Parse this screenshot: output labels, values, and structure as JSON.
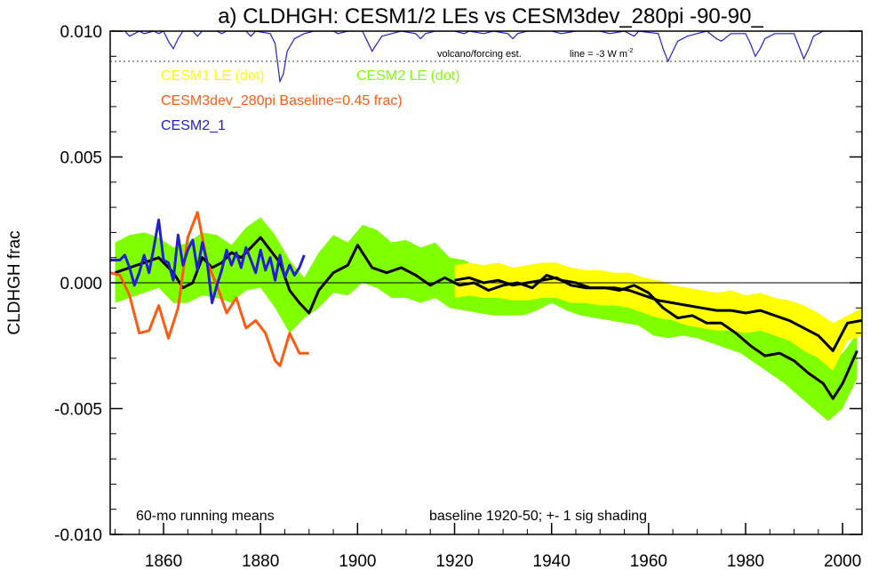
{
  "chart_data": {
    "type": "line",
    "title": "a) CLDHGH: CESM1/2 LEs vs CESM3dev_280pi -90-90_",
    "ylabel": "CLDHGH frac",
    "xlabel": "",
    "xlim": [
      1849,
      2004
    ],
    "ylim": [
      -0.01,
      0.01
    ],
    "x_ticks": [
      1860,
      1880,
      1900,
      1920,
      1940,
      1960,
      1980,
      2000
    ],
    "x_tick_labels": [
      "1860",
      "1880",
      "1900",
      "1920",
      "1940",
      "1960",
      "1980",
      "2000"
    ],
    "y_ticks": [
      0.01,
      0.005,
      0.0,
      -0.005,
      -0.01
    ],
    "y_tick_labels": [
      "0.010",
      "0.005",
      "0.000",
      "-0.005",
      "-0.010"
    ],
    "grid": false,
    "legend_placement": "top-left",
    "legend": [
      {
        "label": "CESM1 LE (dot)",
        "color": "#ffff00"
      },
      {
        "label": "CESM2 LE (dot)",
        "color": "#7fff00"
      },
      {
        "label": "CESM3dev_280pi Baseline=0.45 frac)",
        "color": "#ff5a10"
      },
      {
        "label": "CESM2_1",
        "color": "#2020d0"
      }
    ],
    "annotations": {
      "volcano": "volcano/forcing est.",
      "volcano_line": "line = -3 W m",
      "volcano_line_sup": "-2",
      "running_means": "60-mo running means",
      "baseline_note": "baseline 1920-50; +- 1 sig shading"
    },
    "colors": {
      "cesm1_band": "#ffff00",
      "cesm2_band": "#7fff00",
      "ensemble_mean": "#000000",
      "cesm3dev": "#ff5a10",
      "cesm2_1": "#2020d0",
      "volcano": "#2020d0"
    },
    "volcano_baseline": 0.0088,
    "volcano_series": [
      {
        "x": 1849,
        "y": 0.01
      },
      {
        "x": 1852,
        "y": 0.01
      },
      {
        "x": 1853,
        "y": 0.0098
      },
      {
        "x": 1855,
        "y": 0.01
      },
      {
        "x": 1856,
        "y": 0.0099
      },
      {
        "x": 1858,
        "y": 0.01
      },
      {
        "x": 1859,
        "y": 0.0099
      },
      {
        "x": 1860,
        "y": 0.01
      },
      {
        "x": 1861,
        "y": 0.0096
      },
      {
        "x": 1862,
        "y": 0.0093
      },
      {
        "x": 1863,
        "y": 0.0097
      },
      {
        "x": 1864,
        "y": 0.01
      },
      {
        "x": 1866,
        "y": 0.01
      },
      {
        "x": 1867,
        "y": 0.0098
      },
      {
        "x": 1868,
        "y": 0.01
      },
      {
        "x": 1871,
        "y": 0.01
      },
      {
        "x": 1872,
        "y": 0.0099
      },
      {
        "x": 1873,
        "y": 0.01
      },
      {
        "x": 1877,
        "y": 0.01
      },
      {
        "x": 1878,
        "y": 0.0098
      },
      {
        "x": 1879,
        "y": 0.01
      },
      {
        "x": 1882,
        "y": 0.0099
      },
      {
        "x": 1883,
        "y": 0.0095
      },
      {
        "x": 1884,
        "y": 0.008
      },
      {
        "x": 1884.7,
        "y": 0.0083
      },
      {
        "x": 1885.5,
        "y": 0.0092
      },
      {
        "x": 1887,
        "y": 0.0097
      },
      {
        "x": 1889,
        "y": 0.0099
      },
      {
        "x": 1891,
        "y": 0.01
      },
      {
        "x": 1895,
        "y": 0.01
      },
      {
        "x": 1896,
        "y": 0.0099
      },
      {
        "x": 1898,
        "y": 0.01
      },
      {
        "x": 1901,
        "y": 0.01
      },
      {
        "x": 1902,
        "y": 0.0096
      },
      {
        "x": 1903,
        "y": 0.0092
      },
      {
        "x": 1904,
        "y": 0.0095
      },
      {
        "x": 1905,
        "y": 0.0098
      },
      {
        "x": 1907,
        "y": 0.0099
      },
      {
        "x": 1909,
        "y": 0.01
      },
      {
        "x": 1912,
        "y": 0.0099
      },
      {
        "x": 1913,
        "y": 0.0097
      },
      {
        "x": 1914,
        "y": 0.0099
      },
      {
        "x": 1916,
        "y": 0.01
      },
      {
        "x": 1920,
        "y": 0.01
      },
      {
        "x": 1922,
        "y": 0.0099
      },
      {
        "x": 1923,
        "y": 0.01
      },
      {
        "x": 1926,
        "y": 0.0099
      },
      {
        "x": 1928,
        "y": 0.01
      },
      {
        "x": 1931,
        "y": 0.0099
      },
      {
        "x": 1932,
        "y": 0.0097
      },
      {
        "x": 1933,
        "y": 0.0099
      },
      {
        "x": 1935,
        "y": 0.01
      },
      {
        "x": 1940,
        "y": 0.01
      },
      {
        "x": 1942,
        "y": 0.0099
      },
      {
        "x": 1945,
        "y": 0.01
      },
      {
        "x": 1950,
        "y": 0.01
      },
      {
        "x": 1952,
        "y": 0.0099
      },
      {
        "x": 1955,
        "y": 0.01
      },
      {
        "x": 1957,
        "y": 0.0098
      },
      {
        "x": 1958,
        "y": 0.01
      },
      {
        "x": 1962,
        "y": 0.0099
      },
      {
        "x": 1963,
        "y": 0.0093
      },
      {
        "x": 1964,
        "y": 0.0088
      },
      {
        "x": 1965,
        "y": 0.0092
      },
      {
        "x": 1966,
        "y": 0.0096
      },
      {
        "x": 1968,
        "y": 0.0098
      },
      {
        "x": 1970,
        "y": 0.0099
      },
      {
        "x": 1972,
        "y": 0.01
      },
      {
        "x": 1974,
        "y": 0.0097
      },
      {
        "x": 1975,
        "y": 0.0096
      },
      {
        "x": 1977,
        "y": 0.0099
      },
      {
        "x": 1980,
        "y": 0.0099
      },
      {
        "x": 1981,
        "y": 0.0095
      },
      {
        "x": 1982,
        "y": 0.009
      },
      {
        "x": 1983,
        "y": 0.0093
      },
      {
        "x": 1984,
        "y": 0.0097
      },
      {
        "x": 1986,
        "y": 0.0099
      },
      {
        "x": 1990,
        "y": 0.0099
      },
      {
        "x": 1991,
        "y": 0.0094
      },
      {
        "x": 1992,
        "y": 0.0089
      },
      {
        "x": 1993,
        "y": 0.0093
      },
      {
        "x": 1994,
        "y": 0.0098
      },
      {
        "x": 1996,
        "y": 0.01
      },
      {
        "x": 1998,
        "y": 0.01
      },
      {
        "x": 2001,
        "y": 0.01
      },
      {
        "x": 2004,
        "y": 0.01
      }
    ],
    "cesm2_band": {
      "x": [
        1850,
        1853,
        1856,
        1859,
        1862,
        1865,
        1868,
        1871,
        1874,
        1877,
        1880,
        1883,
        1886,
        1889,
        1892,
        1895,
        1898,
        1901,
        1904,
        1907,
        1910,
        1913,
        1916,
        1919,
        1922,
        1925,
        1928,
        1931,
        1934,
        1937,
        1940,
        1943,
        1946,
        1949,
        1952,
        1955,
        1958,
        1961,
        1964,
        1967,
        1970,
        1973,
        1976,
        1979,
        1982,
        1985,
        1988,
        1991,
        1994,
        1997,
        2000,
        2003
      ],
      "upper": [
        0.0016,
        0.0019,
        0.002,
        0.0018,
        0.0014,
        0.0016,
        0.002,
        0.0019,
        0.0015,
        0.0022,
        0.0026,
        0.0019,
        0.0009,
        0.0002,
        0.0012,
        0.0019,
        0.0016,
        0.0023,
        0.0021,
        0.0016,
        0.0017,
        0.0014,
        0.0016,
        0.001,
        0.0009,
        0.0006,
        0.0005,
        0.0004,
        0.0004,
        0.0006,
        0.0008,
        0.0005,
        0.0002,
        0.0,
        0.0001,
        0.0001,
        0.0,
        -0.0004,
        -0.0004,
        -0.0005,
        -0.0007,
        -0.0009,
        -0.001,
        -0.0012,
        -0.0015,
        -0.0018,
        -0.002,
        -0.0023,
        -0.0026,
        -0.003,
        -0.0028,
        -0.002
      ],
      "lower": [
        -0.0008,
        -0.0006,
        -0.0004,
        -0.0002,
        -0.0008,
        -0.0008,
        -0.0005,
        -0.0006,
        -0.0008,
        -0.0003,
        -0.0002,
        -0.001,
        -0.002,
        -0.0014,
        -0.001,
        -0.0004,
        -0.0005,
        0.0,
        -0.0002,
        -0.0006,
        -0.0006,
        -0.0008,
        -0.0006,
        -0.001,
        -0.0011,
        -0.0012,
        -0.0013,
        -0.0013,
        -0.0013,
        -0.0011,
        -0.0008,
        -0.0011,
        -0.0013,
        -0.0014,
        -0.0015,
        -0.0016,
        -0.0017,
        -0.0021,
        -0.0022,
        -0.0021,
        -0.0022,
        -0.0024,
        -0.0026,
        -0.0028,
        -0.0032,
        -0.0036,
        -0.004,
        -0.0045,
        -0.005,
        -0.0055,
        -0.005,
        -0.0038
      ]
    },
    "cesm1_band": {
      "x": [
        1920,
        1923,
        1926,
        1929,
        1932,
        1935,
        1938,
        1941,
        1944,
        1947,
        1950,
        1953,
        1956,
        1959,
        1962,
        1965,
        1968,
        1971,
        1974,
        1977,
        1980,
        1983,
        1986,
        1989,
        1992,
        1995,
        1998,
        2001,
        2004
      ],
      "upper": [
        0.0007,
        0.0008,
        0.0007,
        0.0008,
        0.0006,
        0.0007,
        0.0008,
        0.0008,
        0.0006,
        0.0005,
        0.0005,
        0.0004,
        0.0004,
        0.0002,
        0.0001,
        -0.0001,
        -0.0002,
        -0.0003,
        -0.0004,
        -0.0003,
        -0.0005,
        -0.0004,
        -0.0006,
        -0.0007,
        -0.0009,
        -0.0012,
        -0.0016,
        -0.0013,
        -0.001
      ],
      "lower": [
        -0.0006,
        -0.0005,
        -0.0006,
        -0.0006,
        -0.0007,
        -0.0007,
        -0.0006,
        -0.0006,
        -0.0008,
        -0.0008,
        -0.0009,
        -0.0009,
        -0.001,
        -0.0012,
        -0.0014,
        -0.0015,
        -0.0017,
        -0.0018,
        -0.0019,
        -0.0019,
        -0.002,
        -0.0019,
        -0.0021,
        -0.0023,
        -0.0027,
        -0.003,
        -0.0035,
        -0.0023,
        -0.0021
      ]
    },
    "series": [
      {
        "name": "CESM2 LE ensemble mean",
        "color": "#000000",
        "x": [
          1850,
          1853,
          1856,
          1859,
          1862,
          1864,
          1866,
          1868,
          1870,
          1872,
          1874,
          1876,
          1878,
          1880,
          1882,
          1884,
          1886,
          1888,
          1890,
          1892,
          1895,
          1898,
          1900,
          1903,
          1906,
          1909,
          1912,
          1915,
          1918,
          1921,
          1924,
          1927,
          1930,
          1933,
          1936,
          1939,
          1942,
          1945,
          1948,
          1951,
          1954,
          1957,
          1960,
          1963,
          1966,
          1969,
          1972,
          1975,
          1978,
          1981,
          1984,
          1987,
          1990,
          1993,
          1996,
          1998,
          2000,
          2003
        ],
        "y": [
          0.0004,
          0.0006,
          0.0008,
          0.001,
          0.0004,
          -0.0002,
          0.0,
          0.001,
          0.0006,
          0.0008,
          0.0012,
          0.001,
          0.0014,
          0.0018,
          0.0013,
          0.0008,
          -0.0003,
          -0.0008,
          -0.0012,
          -0.0003,
          0.0004,
          0.0007,
          0.0015,
          0.0006,
          0.0004,
          0.0006,
          0.0003,
          -0.0001,
          0.0002,
          -0.0001,
          0.0,
          -0.0003,
          -0.0001,
          0.0,
          -0.0002,
          0.0003,
          0.0001,
          0.0,
          -0.0002,
          -0.0002,
          -0.0003,
          -0.0001,
          -0.0004,
          -0.001,
          -0.0014,
          -0.0013,
          -0.0016,
          -0.0016,
          -0.002,
          -0.0025,
          -0.0029,
          -0.0028,
          -0.0031,
          -0.0036,
          -0.004,
          -0.0046,
          -0.004,
          -0.0027
        ]
      },
      {
        "name": "CESM1 LE ensemble mean",
        "color": "#000000",
        "x": [
          1920,
          1923,
          1926,
          1929,
          1932,
          1935,
          1938,
          1941,
          1944,
          1947,
          1950,
          1953,
          1956,
          1959,
          1962,
          1965,
          1968,
          1971,
          1974,
          1977,
          1980,
          1983,
          1986,
          1989,
          1992,
          1995,
          1998,
          2001,
          2004
        ],
        "y": [
          0.0001,
          0.0002,
          0.0,
          0.0001,
          -0.0001,
          0.0,
          0.0001,
          0.0002,
          -0.0001,
          -0.0002,
          -0.0002,
          -0.0002,
          -0.0003,
          -0.0005,
          -0.0007,
          -0.0008,
          -0.0009,
          -0.001,
          -0.0011,
          -0.0011,
          -0.0012,
          -0.0011,
          -0.0013,
          -0.0015,
          -0.0018,
          -0.0021,
          -0.0027,
          -0.0016,
          -0.0015
        ]
      },
      {
        "name": "CESM3dev_280pi",
        "color": "#ff5a10",
        "x": [
          1849,
          1851,
          1853,
          1855,
          1857,
          1859,
          1861,
          1863,
          1865,
          1867,
          1869,
          1871,
          1873,
          1875,
          1877,
          1879,
          1881,
          1883,
          1884,
          1886,
          1888,
          1890
        ],
        "y": [
          0.0004,
          0.0003,
          -0.0005,
          -0.002,
          -0.0019,
          -0.0009,
          -0.0022,
          -0.001,
          0.0018,
          0.0028,
          0.0008,
          -0.0001,
          -0.0012,
          -0.0006,
          -0.0018,
          -0.0015,
          -0.002,
          -0.0031,
          -0.0033,
          -0.002,
          -0.0028,
          -0.0028
        ]
      },
      {
        "name": "CESM2_1",
        "color": "#2020d0",
        "x": [
          1849,
          1851,
          1852,
          1853,
          1854,
          1855,
          1856,
          1857,
          1858,
          1859,
          1860,
          1861,
          1862,
          1863,
          1864,
          1865,
          1866,
          1867,
          1868,
          1869,
          1870,
          1871,
          1872,
          1873,
          1874,
          1875,
          1876,
          1877,
          1878,
          1879,
          1880,
          1881,
          1882,
          1883,
          1884,
          1885,
          1886,
          1887,
          1888,
          1889
        ],
        "y": [
          0.0009,
          0.0009,
          0.0011,
          0.0006,
          -0.0001,
          0.0004,
          0.0011,
          0.0004,
          0.0014,
          0.0025,
          0.0009,
          0.0008,
          0.0001,
          0.0019,
          0.0007,
          0.0013,
          0.0017,
          0.0005,
          0.0016,
          0.0008,
          -0.0008,
          -0.0001,
          0.0005,
          0.0013,
          0.0007,
          0.0012,
          0.0006,
          0.0014,
          0.0009,
          0.0004,
          0.0013,
          0.0005,
          0.001,
          0.0001,
          0.0011,
          0.0002,
          0.0007,
          0.0003,
          0.0006,
          0.0011
        ]
      }
    ]
  }
}
